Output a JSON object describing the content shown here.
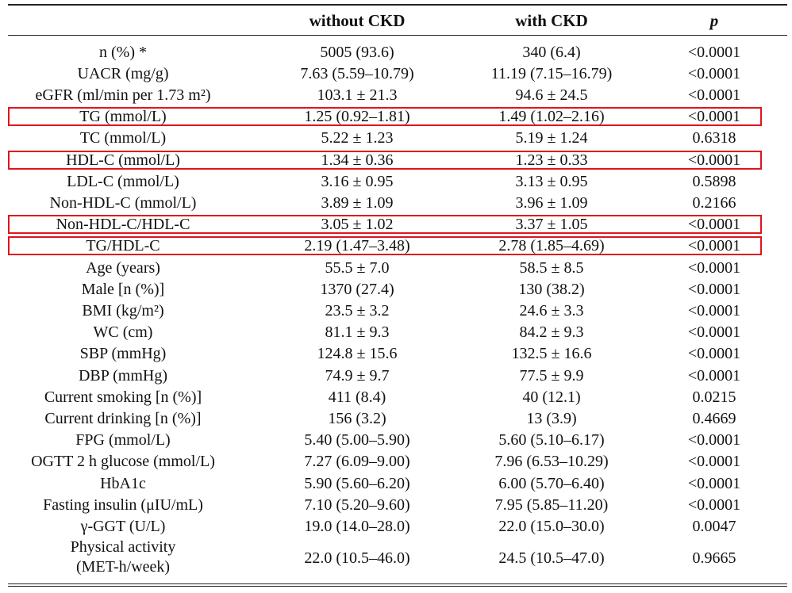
{
  "headers": {
    "label": "",
    "without_ckd": "without CKD",
    "with_ckd": "with CKD",
    "p": "p"
  },
  "highlight_color": "#e0141c",
  "rows": [
    {
      "label": "n (%) *",
      "without": "5005 (93.6)",
      "with": "340 (6.4)",
      "p": "<0.0001"
    },
    {
      "label": "UACR (mg/g)",
      "without": "7.63 (5.59–10.79)",
      "with": "11.19 (7.15–16.79)",
      "p": "<0.0001"
    },
    {
      "label": "eGFR (ml/min per 1.73 m²)",
      "without": "103.1 ± 21.3",
      "with": "94.6 ± 24.5",
      "p": "<0.0001"
    },
    {
      "label": "TG (mmol/L)",
      "without": "1.25 (0.92–1.81)",
      "with": "1.49 (1.02–2.16)",
      "p": "<0.0001",
      "highlighted": true
    },
    {
      "label": "TC (mmol/L)",
      "without": "5.22 ± 1.23",
      "with": "5.19 ± 1.24",
      "p": "0.6318"
    },
    {
      "label": "HDL-C (mmol/L)",
      "without": "1.34 ± 0.36",
      "with": "1.23 ± 0.33",
      "p": "<0.0001",
      "highlighted": true
    },
    {
      "label": "LDL-C (mmol/L)",
      "without": "3.16 ± 0.95",
      "with": "3.13 ± 0.95",
      "p": "0.5898"
    },
    {
      "label": "Non-HDL-C (mmol/L)",
      "without": "3.89 ± 1.09",
      "with": "3.96 ± 1.09",
      "p": "0.2166"
    },
    {
      "label": "Non-HDL-C/HDL-C",
      "without": "3.05 ± 1.02",
      "with": "3.37 ± 1.05",
      "p": "<0.0001",
      "highlighted": true
    },
    {
      "label": "TG/HDL-C",
      "without": "2.19 (1.47–3.48)",
      "with": "2.78 (1.85–4.69)",
      "p": "<0.0001",
      "highlighted": true
    },
    {
      "label": "Age (years)",
      "without": "55.5 ± 7.0",
      "with": "58.5 ± 8.5",
      "p": "<0.0001"
    },
    {
      "label": "Male [n (%)]",
      "without": "1370 (27.4)",
      "with": "130 (38.2)",
      "p": "<0.0001"
    },
    {
      "label": "BMI (kg/m²)",
      "without": "23.5 ± 3.2",
      "with": "24.6 ± 3.3",
      "p": "<0.0001"
    },
    {
      "label": "WC (cm)",
      "without": "81.1 ± 9.3",
      "with": "84.2 ± 9.3",
      "p": "<0.0001"
    },
    {
      "label": "SBP (mmHg)",
      "without": "124.8 ± 15.6",
      "with": "132.5 ± 16.6",
      "p": "<0.0001"
    },
    {
      "label": "DBP (mmHg)",
      "without": "74.9 ± 9.7",
      "with": "77.5 ± 9.9",
      "p": "<0.0001"
    },
    {
      "label": "Current smoking [n (%)]",
      "without": "411 (8.4)",
      "with": "40 (12.1)",
      "p": "0.0215"
    },
    {
      "label": "Current drinking [n (%)]",
      "without": "156 (3.2)",
      "with": "13 (3.9)",
      "p": "0.4669"
    },
    {
      "label": "FPG (mmol/L)",
      "without": "5.40 (5.00–5.90)",
      "with": "5.60 (5.10–6.17)",
      "p": "<0.0001"
    },
    {
      "label": "OGTT 2 h glucose (mmol/L)",
      "without": "7.27 (6.09–9.00)",
      "with": "7.96 (6.53–10.29)",
      "p": "<0.0001"
    },
    {
      "label": "HbA1c",
      "without": "5.90 (5.60–6.20)",
      "with": "6.00 (5.70–6.40)",
      "p": "<0.0001"
    },
    {
      "label": "Fasting insulin (μIU/mL)",
      "without": "7.10 (5.20–9.60)",
      "with": "7.95 (5.85–11.20)",
      "p": "<0.0001"
    },
    {
      "label": "γ-GGT (U/L)",
      "without": "19.0 (14.0–28.0)",
      "with": "22.0 (15.0–30.0)",
      "p": "0.0047"
    },
    {
      "label": "Physical activity\n(MET-h/week)",
      "without": "22.0 (10.5–46.0)",
      "with": "24.5 (10.5–47.0)",
      "p": "0.9665"
    }
  ]
}
